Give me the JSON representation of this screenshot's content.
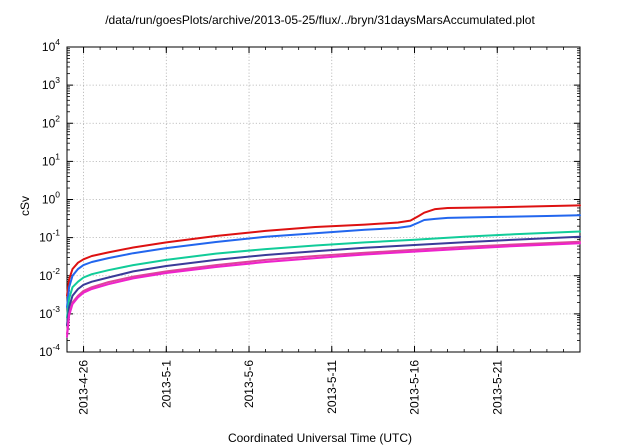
{
  "chart_data": {
    "type": "line",
    "title": "/data/run/goesPlots/archive/2013-05-25/flux/../bryn/31daysMarsAccumulated.plot",
    "xlabel": "Coordinated Universal Time (UTC)",
    "ylabel": "cSv",
    "xlim": [
      "2013-04-25",
      "2013-05-26"
    ],
    "ylim": [
      0.0001,
      10000
    ],
    "yscale": "log",
    "grid": true,
    "x_ticks": [
      "2013-4-26",
      "2013-5-1",
      "2013-5-6",
      "2013-5-11",
      "2013-5-16",
      "2013-5-21"
    ],
    "y_ticks": [
      {
        "value": 0.0001,
        "base": "10",
        "exp": "-4"
      },
      {
        "value": 0.001,
        "base": "10",
        "exp": "-3"
      },
      {
        "value": 0.01,
        "base": "10",
        "exp": "-2"
      },
      {
        "value": 0.1,
        "base": "10",
        "exp": "-1"
      },
      {
        "value": 1,
        "base": "10",
        "exp": "0"
      },
      {
        "value": 10,
        "base": "10",
        "exp": "1"
      },
      {
        "value": 100,
        "base": "10",
        "exp": "2"
      },
      {
        "value": 1000,
        "base": "10",
        "exp": "3"
      },
      {
        "value": 10000,
        "base": "10",
        "exp": "4"
      }
    ],
    "series": [
      {
        "color": "#dd1111",
        "x": [
          "2013-04-25 00:00",
          "2013-04-25 03:00",
          "2013-04-25 08:00",
          "2013-04-25 16:00",
          "2013-04-26 00:00",
          "2013-04-26 12:00",
          "2013-04-27 12:00",
          "2013-04-29 00:00",
          "2013-05-01 00:00",
          "2013-05-04 00:00",
          "2013-05-07 00:00",
          "2013-05-10 00:00",
          "2013-05-13 00:00",
          "2013-05-15 00:00",
          "2013-05-15 18:00",
          "2013-05-16 06:00",
          "2013-05-16 14:00",
          "2013-05-17 06:00",
          "2013-05-18 00:00",
          "2013-05-21 00:00",
          "2013-05-24 00:00",
          "2013-05-26 00:00"
        ],
        "y": [
          0.003,
          0.008,
          0.015,
          0.022,
          0.027,
          0.033,
          0.041,
          0.055,
          0.075,
          0.11,
          0.15,
          0.19,
          0.22,
          0.25,
          0.28,
          0.37,
          0.45,
          0.56,
          0.6,
          0.63,
          0.67,
          0.7
        ]
      },
      {
        "color": "#2266ee",
        "x": [
          "2013-04-25 00:00",
          "2013-04-25 03:00",
          "2013-04-25 08:00",
          "2013-04-25 16:00",
          "2013-04-26 00:00",
          "2013-04-26 12:00",
          "2013-04-27 12:00",
          "2013-04-29 00:00",
          "2013-05-01 00:00",
          "2013-05-04 00:00",
          "2013-05-07 00:00",
          "2013-05-10 00:00",
          "2013-05-13 00:00",
          "2013-05-15 00:00",
          "2013-05-15 18:00",
          "2013-05-16 06:00",
          "2013-05-16 14:00",
          "2013-05-17 06:00",
          "2013-05-18 00:00",
          "2013-05-21 00:00",
          "2013-05-24 00:00",
          "2013-05-26 00:00"
        ],
        "y": [
          0.0015,
          0.005,
          0.01,
          0.015,
          0.019,
          0.023,
          0.029,
          0.039,
          0.053,
          0.077,
          0.105,
          0.13,
          0.16,
          0.18,
          0.2,
          0.25,
          0.29,
          0.31,
          0.33,
          0.35,
          0.37,
          0.385
        ]
      },
      {
        "color": "#11cc99",
        "x": [
          "2013-04-25 00:00",
          "2013-04-25 03:00",
          "2013-04-25 08:00",
          "2013-04-25 16:00",
          "2013-04-26 00:00",
          "2013-04-26 12:00",
          "2013-04-27 12:00",
          "2013-04-29 00:00",
          "2013-05-01 00:00",
          "2013-05-04 00:00",
          "2013-05-07 00:00",
          "2013-05-10 00:00",
          "2013-05-13 00:00",
          "2013-05-16 00:00",
          "2013-05-19 00:00",
          "2013-05-22 00:00",
          "2013-05-26 00:00"
        ],
        "y": [
          0.0008,
          0.0025,
          0.005,
          0.007,
          0.009,
          0.011,
          0.014,
          0.019,
          0.026,
          0.038,
          0.05,
          0.062,
          0.075,
          0.088,
          0.105,
          0.122,
          0.145
        ]
      },
      {
        "color": "#3a3a99",
        "x": [
          "2013-04-25 00:00",
          "2013-04-25 03:00",
          "2013-04-25 08:00",
          "2013-04-25 16:00",
          "2013-04-26 00:00",
          "2013-04-26 12:00",
          "2013-04-27 12:00",
          "2013-04-29 00:00",
          "2013-05-01 00:00",
          "2013-05-04 00:00",
          "2013-05-07 00:00",
          "2013-05-10 00:00",
          "2013-05-13 00:00",
          "2013-05-16 00:00",
          "2013-05-19 00:00",
          "2013-05-22 00:00",
          "2013-05-26 00:00"
        ],
        "y": [
          0.0005,
          0.0015,
          0.003,
          0.0045,
          0.0058,
          0.007,
          0.009,
          0.013,
          0.018,
          0.026,
          0.035,
          0.044,
          0.054,
          0.064,
          0.076,
          0.088,
          0.105
        ]
      },
      {
        "color": "#dd4499",
        "x": [
          "2013-04-25 00:00",
          "2013-04-25 03:00",
          "2013-04-25 08:00",
          "2013-04-25 16:00",
          "2013-04-26 00:00",
          "2013-04-26 12:00",
          "2013-04-27 12:00",
          "2013-04-29 00:00",
          "2013-05-01 00:00",
          "2013-05-04 00:00",
          "2013-05-07 00:00",
          "2013-05-10 00:00",
          "2013-05-13 00:00",
          "2013-05-16 00:00",
          "2013-05-19 00:00",
          "2013-05-22 00:00",
          "2013-05-26 00:00"
        ],
        "y": [
          0.0003,
          0.001,
          0.002,
          0.003,
          0.004,
          0.005,
          0.0068,
          0.0095,
          0.013,
          0.019,
          0.026,
          0.033,
          0.04,
          0.048,
          0.057,
          0.066,
          0.078
        ]
      },
      {
        "color": "#ee22cc",
        "x": [
          "2013-04-25 00:00",
          "2013-04-25 03:00",
          "2013-04-25 08:00",
          "2013-04-25 16:00",
          "2013-04-26 00:00",
          "2013-04-26 12:00",
          "2013-04-27 12:00",
          "2013-04-29 00:00",
          "2013-05-01 00:00",
          "2013-05-04 00:00",
          "2013-05-07 00:00",
          "2013-05-10 00:00",
          "2013-05-13 00:00",
          "2013-05-16 00:00",
          "2013-05-19 00:00",
          "2013-05-22 00:00",
          "2013-05-26 00:00"
        ],
        "y": [
          0.00025,
          0.0009,
          0.0018,
          0.0027,
          0.0036,
          0.0045,
          0.006,
          0.0085,
          0.0118,
          0.017,
          0.023,
          0.029,
          0.036,
          0.043,
          0.051,
          0.06,
          0.071
        ]
      }
    ]
  }
}
